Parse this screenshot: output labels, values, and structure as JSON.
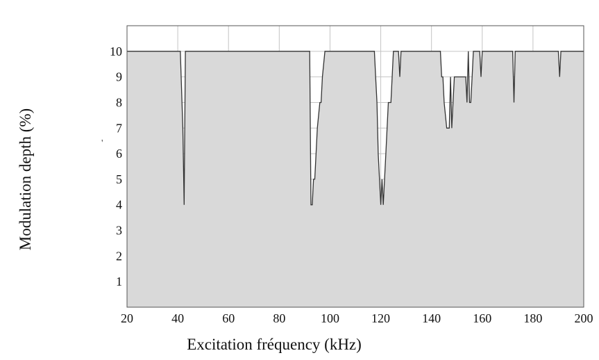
{
  "chart_data": {
    "type": "area",
    "xlabel": "Excitation fréquency (kHz)",
    "ylabel": "Modulation depth (%)",
    "xlim": [
      20,
      200
    ],
    "ylim": [
      0,
      11
    ],
    "xticks": [
      20,
      40,
      60,
      80,
      100,
      120,
      140,
      160,
      180,
      200
    ],
    "yticks": [
      1,
      2,
      3,
      4,
      5,
      6,
      7,
      8,
      9,
      10
    ],
    "grid": true,
    "fill_color": "#d9d9d9",
    "line_color": "#333333",
    "series": [
      {
        "x": [
          20,
          41,
          42,
          42.5,
          43,
          92,
          92.5,
          93,
          93.5,
          94,
          95,
          96,
          96.5,
          97,
          98,
          117.5,
          118,
          118.5,
          119,
          120,
          120.5,
          121,
          122,
          122.5,
          123,
          124,
          124.5,
          125,
          127,
          127.5,
          128,
          128.5,
          129,
          143.5,
          144,
          144.5,
          145,
          146,
          147,
          147.5,
          148,
          148.5,
          149,
          153.5,
          154,
          154.5,
          155,
          155.5,
          156,
          156.5,
          157,
          159,
          159.5,
          160,
          172,
          172.5,
          173,
          190,
          190.5,
          191,
          200
        ],
        "y": [
          10,
          10,
          7,
          4,
          10,
          10,
          4,
          4,
          5,
          5,
          7,
          8,
          8,
          9,
          10,
          10,
          9,
          8,
          6,
          4,
          5,
          4,
          6,
          7,
          8,
          8,
          9,
          10,
          10,
          9,
          10,
          10,
          10,
          10,
          9,
          9,
          8,
          7,
          7,
          9,
          7,
          8,
          9,
          9,
          8,
          10,
          8,
          8,
          9,
          10,
          10,
          10,
          9,
          10,
          10,
          8,
          10,
          10,
          9,
          10,
          10
        ]
      }
    ]
  },
  "stray_mark": "'"
}
